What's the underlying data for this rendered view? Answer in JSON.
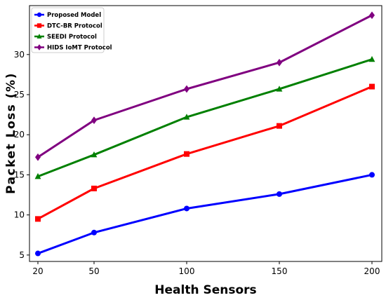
{
  "chart_data": {
    "type": "line",
    "xlabel": "Health Sensors",
    "ylabel": "Packet Loss (%)",
    "x": [
      20,
      50,
      100,
      150,
      200
    ],
    "x_tick_labels": [
      "20",
      "50",
      "100",
      "150",
      "200"
    ],
    "y_ticks": [
      5,
      10,
      15,
      20,
      25,
      30
    ],
    "ylim": [
      4.2,
      36.1
    ],
    "grid": false,
    "legend_position": "top-left",
    "series": [
      {
        "name": "Proposed Model",
        "color": "#0000ff",
        "marker": "circle",
        "values": [
          5.2,
          7.8,
          10.8,
          12.6,
          15.0
        ]
      },
      {
        "name": "DTC-BR Protocol",
        "color": "#ff0000",
        "marker": "square",
        "values": [
          9.5,
          13.3,
          17.6,
          21.1,
          26.0
        ]
      },
      {
        "name": "SEEDI Protocol",
        "color": "#008000",
        "marker": "triangle",
        "values": [
          14.8,
          17.5,
          22.2,
          25.7,
          29.4
        ]
      },
      {
        "name": "HIDS IoMT Protocol",
        "color": "#800080",
        "marker": "diamond",
        "values": [
          17.2,
          21.8,
          25.7,
          29.0,
          34.9
        ]
      }
    ]
  }
}
